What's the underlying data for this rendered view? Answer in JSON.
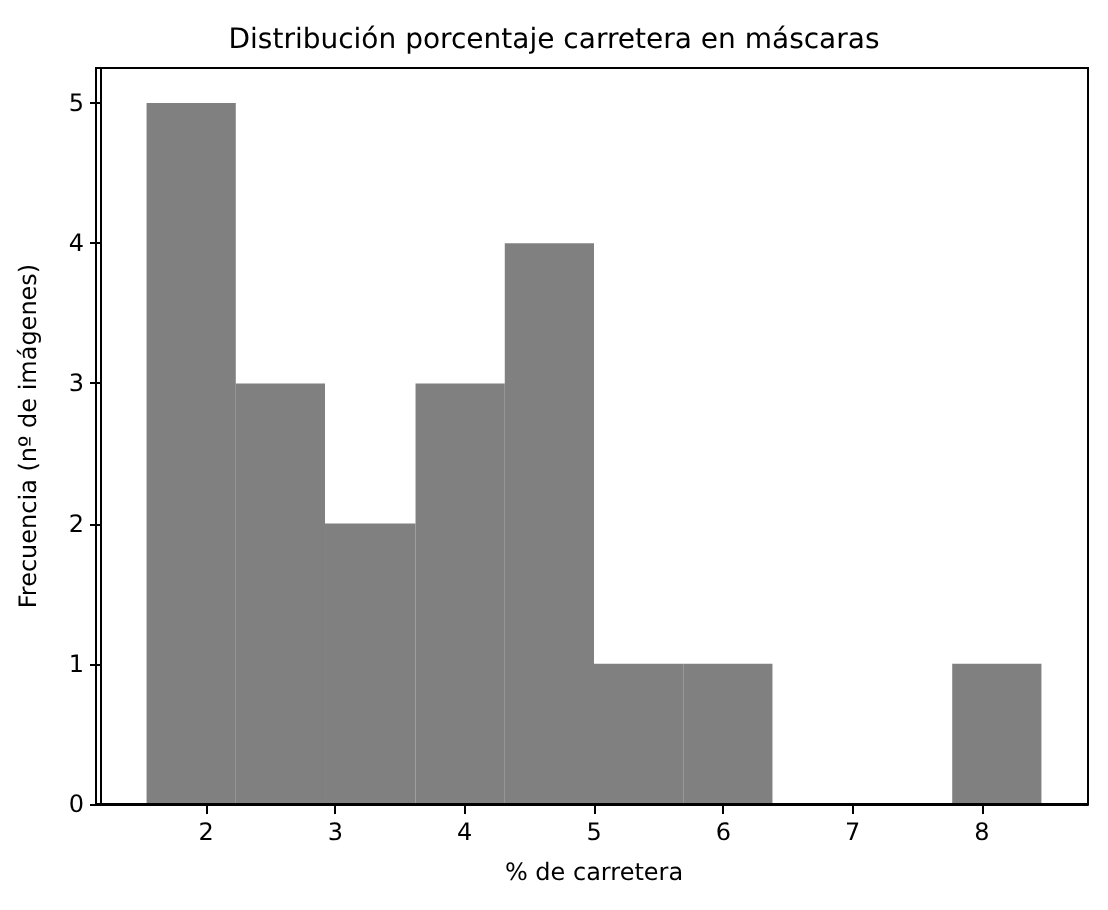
{
  "chart_data": {
    "type": "histogram",
    "title": "Distribución porcentaje carretera en máscaras",
    "xlabel": "% de carretera",
    "ylabel": "Frecuencia (nº de imágenes)",
    "bins": [
      1.54,
      2.23,
      2.92,
      3.62,
      4.31,
      5.0,
      5.69,
      6.38,
      7.77,
      8.46
    ],
    "values": [
      5,
      3,
      2,
      3,
      4,
      1,
      1,
      0,
      1
    ],
    "color": "#808080",
    "xlim": [
      1.18,
      8.82
    ],
    "xticks": [
      2,
      3,
      4,
      5,
      6,
      7,
      8
    ],
    "ylim": [
      0,
      5.25
    ],
    "yticks": [
      0,
      1,
      2,
      3,
      4,
      5
    ],
    "grid": false
  }
}
